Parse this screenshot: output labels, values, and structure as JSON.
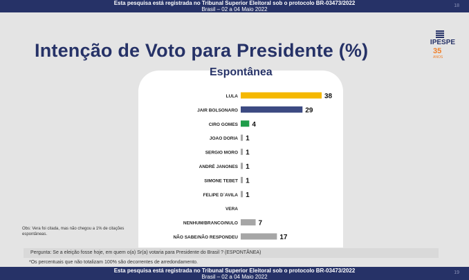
{
  "header": {
    "line1": "Esta pesquisa está registrada no Tribunal Superior Eleitoral sob o protocolo BR-03473/2022",
    "line2": "Brasil – 02 a 04 Maio 2022",
    "page_number": "18"
  },
  "footer": {
    "line1": "Esta pesquisa está registrada no Tribunal Superior Eleitoral sob o protocolo BR-03473/2022",
    "line2": "Brasil – 02 a 04 Maio 2022",
    "page_number": "19"
  },
  "title": "Intenção de Voto para Presidente (%)",
  "subtitle": "Espontânea",
  "logo": {
    "name": "IPESPE",
    "number": "35",
    "years_label": "ANOS"
  },
  "obs": "Obs: Vera foi citada, mas não chegou a 1% de citações espontâneas.",
  "question": "Pergunta:  Se a eleição fosse hoje, em quem o(a) Sr(a) votaria para  Presidente do Brasil ? (ESPONTÂNEA)",
  "note": "*Os percentuais que não totalizam 100% são decorrentes de arredondamento.",
  "colors": {
    "navy": "#263267",
    "yellow": "#f5b800",
    "blue": "#3c4a82",
    "green": "#1f9d4a",
    "gray": "#a6a6a6"
  },
  "chart_data": {
    "type": "bar",
    "orientation": "horizontal",
    "title": "Espontânea",
    "categories": [
      "LULA",
      "JAIR BOLSONARO",
      "CIRO GOMES",
      "JOAO DORIA",
      "SERGIO MORO",
      "ANDRÉ JANONES",
      "SIMONE TEBET",
      "FELIPE D´AVILA",
      "VERA",
      "NENHUM/BRANCO/NULO",
      "NÃO SABE/NÃO RESPONDEU"
    ],
    "values": [
      38,
      29,
      4,
      1,
      1,
      1,
      1,
      1,
      null,
      7,
      17
    ],
    "labels": [
      "38",
      "29",
      "4",
      "1",
      "1",
      "1",
      "1",
      "1",
      "",
      "7",
      "17"
    ],
    "bar_colors": [
      "#f5b800",
      "#3c4a82",
      "#1f9d4a",
      "#a6a6a6",
      "#a6a6a6",
      "#a6a6a6",
      "#a6a6a6",
      "#a6a6a6",
      "#a6a6a6",
      "#a6a6a6",
      "#a6a6a6"
    ],
    "xlim": [
      0,
      38
    ],
    "grid": false,
    "legend": "none"
  }
}
